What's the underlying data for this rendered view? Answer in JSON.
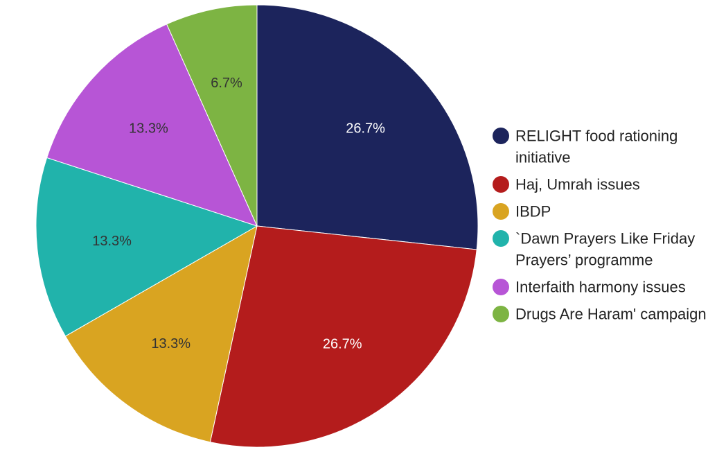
{
  "chart_data": {
    "type": "pie",
    "title": "",
    "slices": [
      {
        "name": "RELIGHT food rationing initiative",
        "value": 26.7,
        "label": "26.7%",
        "color": "#1c245c",
        "label_color": "#ffffff"
      },
      {
        "name": "Haj, Umrah issues",
        "value": 26.7,
        "label": "26.7%",
        "color": "#b41c1c",
        "label_color": "#ffffff"
      },
      {
        "name": "IBDP",
        "value": 13.3,
        "label": "13.3%",
        "color": "#d9a421",
        "label_color": "#333333"
      },
      {
        "name": "`Dawn Prayers Like Friday Prayers’ programme",
        "value": 13.3,
        "label": "13.3%",
        "color": "#21b3ab",
        "label_color": "#333333"
      },
      {
        "name": "Interfaith harmony issues",
        "value": 13.3,
        "label": "13.3%",
        "color": "#b755d6",
        "label_color": "#333333"
      },
      {
        "name": "Drugs Are Haram' campaign",
        "value": 6.7,
        "label": "6.7%",
        "color": "#7db443",
        "label_color": "#333333"
      }
    ],
    "legend": {
      "placement": "right",
      "entries": [
        [
          "RELIGHT food rationing",
          "initiative"
        ],
        [
          "Haj, Umrah issues"
        ],
        [
          "IBDP"
        ],
        [
          "`Dawn Prayers Like Friday",
          "Prayers’ programme"
        ],
        [
          "Interfaith harmony issues"
        ],
        [
          "Drugs Are Haram' campaign"
        ]
      ]
    }
  }
}
